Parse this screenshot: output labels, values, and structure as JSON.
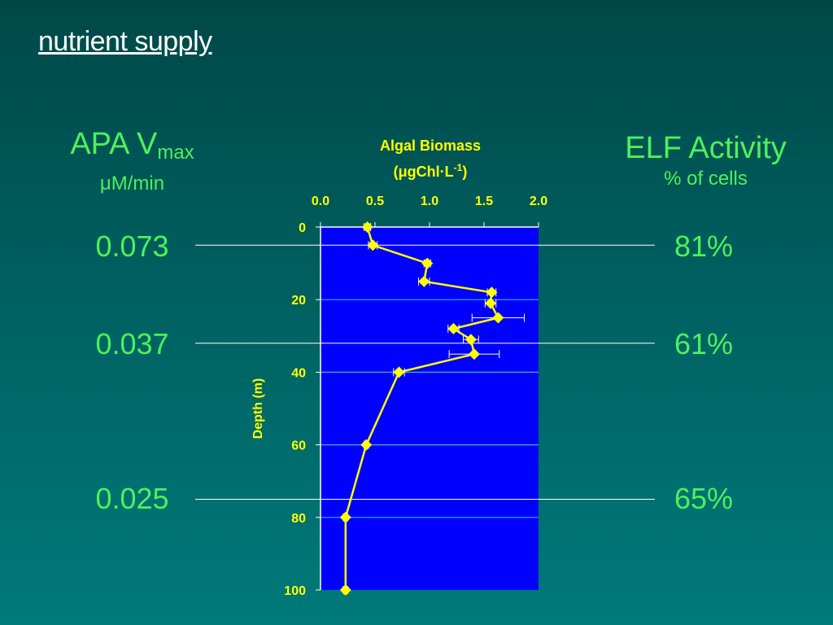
{
  "slide": {
    "title": "nutrient supply"
  },
  "left_panel": {
    "heading_main": "APA V",
    "heading_sub": "max",
    "unit": "μM/min",
    "values": [
      {
        "depth": 5,
        "label": "0.073"
      },
      {
        "depth": 32,
        "label": "0.037"
      },
      {
        "depth": 75,
        "label": "0.025"
      }
    ]
  },
  "right_panel": {
    "heading": "ELF Activity",
    "unit": "% of cells",
    "values": [
      {
        "depth": 5,
        "label": "81%"
      },
      {
        "depth": 32,
        "label": "61%"
      },
      {
        "depth": 75,
        "label": "65%"
      }
    ]
  },
  "colors": {
    "plot_background": "#0000ff",
    "series": "#ffff00",
    "text_accent": "#4cf25a",
    "gridlines": "#40b0d0"
  },
  "chart_data": {
    "type": "line",
    "title": "Algal Biomass",
    "xlabel_main": "(μgChl·L",
    "xlabel_sup": "-1",
    "xlabel_end": ")",
    "ylabel": "Depth (m)",
    "xlim": [
      0,
      2
    ],
    "ylim": [
      0,
      100
    ],
    "y_inverted": true,
    "x_axis_position": "top",
    "x_ticks": [
      "0.0",
      "0.5",
      "1.0",
      "1.5",
      "2.0"
    ],
    "y_ticks": [
      "0",
      "20",
      "40",
      "60",
      "80",
      "100"
    ],
    "grid": "horizontal",
    "series": [
      {
        "points": [
          {
            "depth": 0,
            "value": 0.43,
            "err": 0.03
          },
          {
            "depth": 5,
            "value": 0.48,
            "err": 0.04
          },
          {
            "depth": 10,
            "value": 0.98,
            "err": 0.03
          },
          {
            "depth": 15,
            "value": 0.95,
            "err": 0.05
          },
          {
            "depth": 18,
            "value": 1.57,
            "err": 0.04
          },
          {
            "depth": 21,
            "value": 1.56,
            "err": 0.05
          },
          {
            "depth": 25,
            "value": 1.63,
            "err": 0.24
          },
          {
            "depth": 28,
            "value": 1.22,
            "err": 0.05
          },
          {
            "depth": 31,
            "value": 1.38,
            "err": 0.07
          },
          {
            "depth": 35,
            "value": 1.41,
            "err": 0.23
          },
          {
            "depth": 40,
            "value": 0.72,
            "err": 0.05
          },
          {
            "depth": 60,
            "value": 0.42,
            "err": 0.02
          },
          {
            "depth": 80,
            "value": 0.23,
            "err": 0.02
          },
          {
            "depth": 100,
            "value": 0.23,
            "err": 0.02
          }
        ]
      }
    ]
  }
}
